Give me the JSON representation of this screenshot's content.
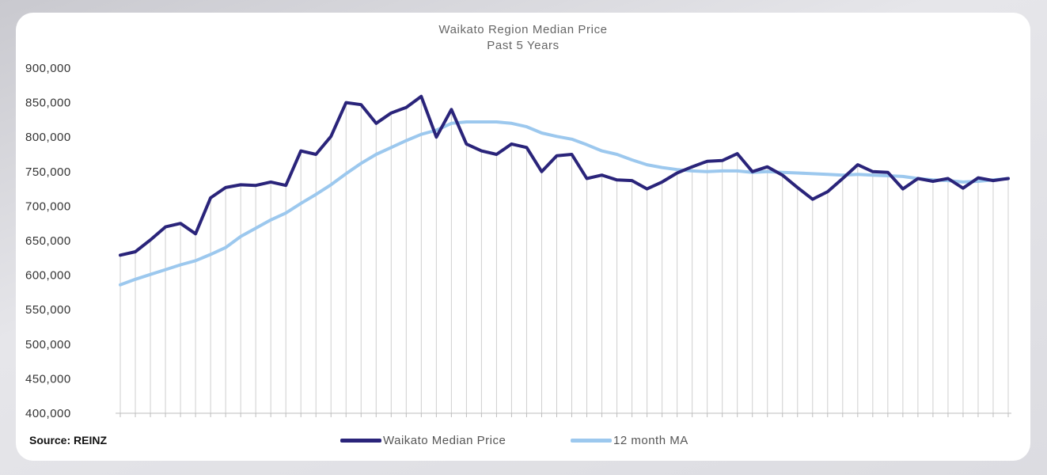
{
  "chart_data": {
    "type": "line",
    "title": "Waikato Region Median Price",
    "subtitle": "Past 5 Years",
    "source": "Source: REINZ",
    "ylim": [
      400000,
      900000
    ],
    "yticks": [
      "900,000",
      "850,000",
      "800,000",
      "750,000",
      "700,000",
      "650,000",
      "600,000",
      "550,000",
      "500,000",
      "450,000",
      "400,000"
    ],
    "ytick_values": [
      900000,
      850000,
      800000,
      750000,
      700000,
      650000,
      600000,
      550000,
      500000,
      450000,
      400000
    ],
    "grid": "vertical",
    "legend_position": "bottom",
    "series": [
      {
        "name": "Waikato Median Price",
        "color": "#2a247a",
        "values": [
          629000,
          634000,
          651000,
          670000,
          675000,
          660000,
          712000,
          727000,
          731000,
          730000,
          735000,
          730000,
          780000,
          775000,
          801000,
          850000,
          847000,
          820000,
          835000,
          843000,
          859000,
          800000,
          840000,
          790000,
          780000,
          775000,
          790000,
          785000,
          750000,
          773000,
          775000,
          740000,
          745000,
          738000,
          737000,
          725000,
          735000,
          748000,
          757000,
          765000,
          766000,
          776000,
          750000,
          757000,
          745000,
          727000,
          710000,
          721000,
          740000,
          760000,
          750000,
          749000,
          725000,
          740000,
          736000,
          740000,
          726000,
          741000,
          737000,
          740000
        ]
      },
      {
        "name": "12 month MA",
        "color": "#9cc8ee",
        "values": [
          586000,
          594000,
          601000,
          608000,
          615000,
          621000,
          630000,
          640000,
          656000,
          668000,
          680000,
          690000,
          704000,
          717000,
          731000,
          747000,
          762000,
          775000,
          785000,
          795000,
          804000,
          810000,
          820000,
          822000,
          822000,
          822000,
          820000,
          815000,
          806000,
          801000,
          797000,
          789000,
          780000,
          775000,
          767000,
          760000,
          756000,
          753000,
          751000,
          750000,
          751000,
          751000,
          749000,
          750000,
          749000,
          748000,
          747000,
          746000,
          745000,
          746000,
          745000,
          744000,
          743000,
          740000,
          738000,
          737000,
          735000,
          736000,
          738000,
          740000
        ]
      }
    ]
  }
}
